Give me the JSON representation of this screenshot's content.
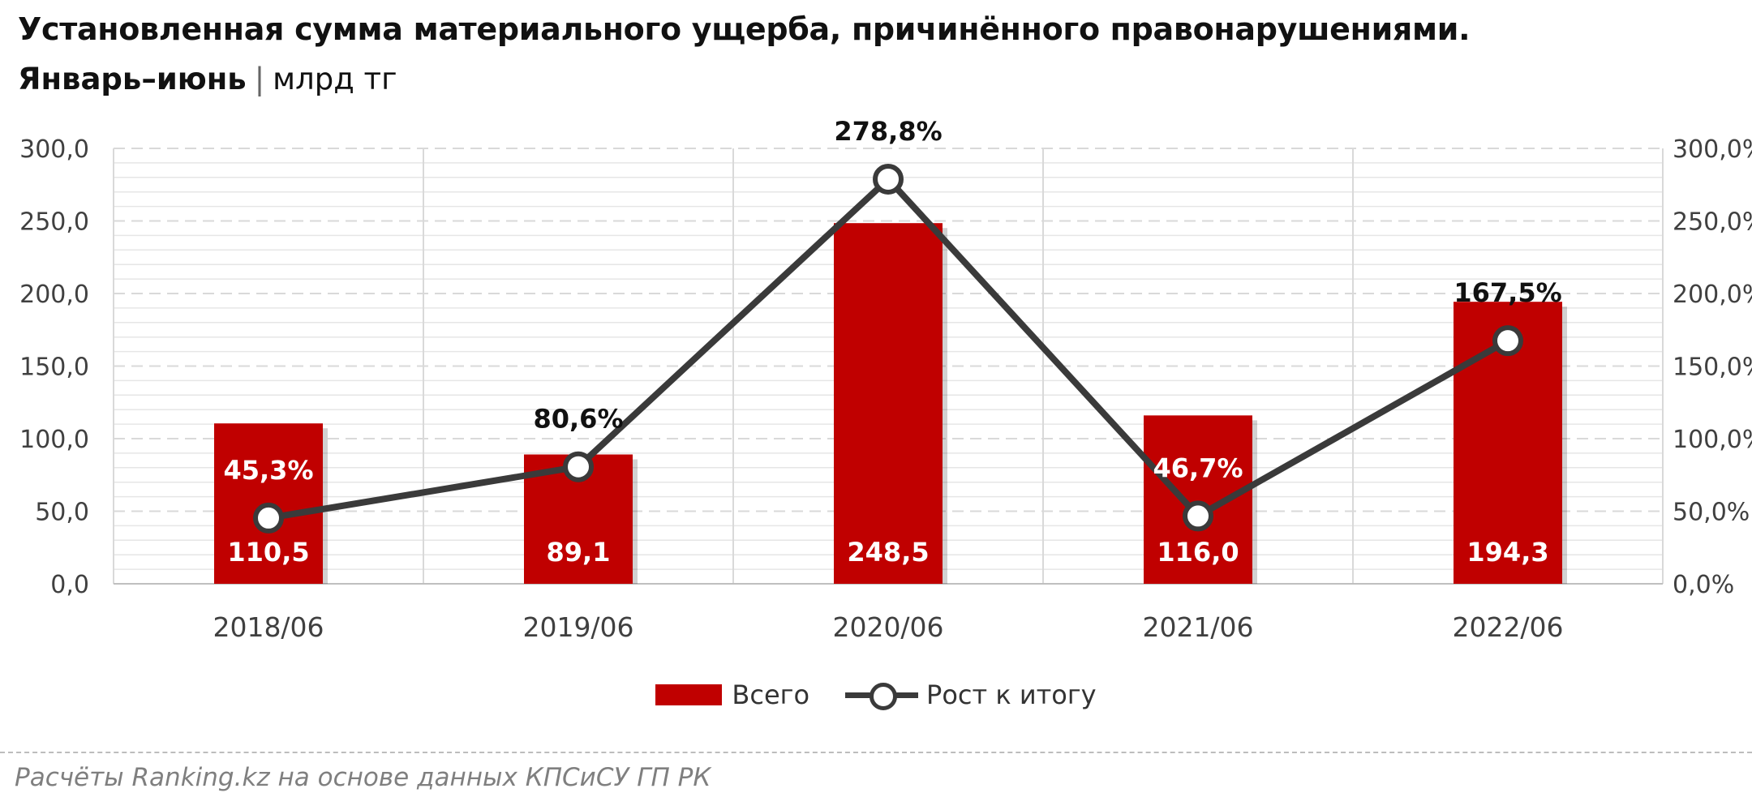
{
  "header": {
    "title": "Установленная сумма материального ущерба, причинённого правонарушениями.",
    "subtitle_period": "Январь–июнь",
    "subtitle_separator": "|",
    "subtitle_unit": "млрд тг"
  },
  "colors": {
    "bar": "#c00000",
    "line": "#3a3a3a",
    "marker_fill": "#ffffff",
    "grid": "#d9d9d9",
    "axis_text": "#404040"
  },
  "chart_data": {
    "type": "bar",
    "categories": [
      "2018/06",
      "2019/06",
      "2020/06",
      "2021/06",
      "2022/06"
    ],
    "series": [
      {
        "name": "Всего",
        "type": "bar",
        "axis": "left",
        "values": [
          110.5,
          89.1,
          248.5,
          116.0,
          194.3
        ],
        "labels": [
          "110,5",
          "89,1",
          "248,5",
          "116,0",
          "194,3"
        ]
      },
      {
        "name": "Рост к итогу",
        "type": "line",
        "axis": "right",
        "values": [
          45.3,
          80.6,
          278.8,
          46.7,
          167.5
        ],
        "labels": [
          "45,3%",
          "80,6%",
          "278,8%",
          "46,7%",
          "167,5%"
        ]
      }
    ],
    "y_left": {
      "min": 0,
      "max": 300,
      "ticks": [
        0,
        50,
        100,
        150,
        200,
        250,
        300
      ],
      "tick_labels": [
        "0,0",
        "50,0",
        "100,0",
        "150,0",
        "200,0",
        "250,0",
        "300,0"
      ]
    },
    "y_right": {
      "min": 0,
      "max": 300,
      "ticks": [
        0,
        50,
        100,
        150,
        200,
        250,
        300
      ],
      "tick_labels": [
        "0,0%",
        "50,0%",
        "100,0%",
        "150,0%",
        "200,0%",
        "250,0%",
        "300,0%"
      ]
    },
    "grid": true,
    "legend": "bottom"
  },
  "legend": {
    "bar_label": "Всего",
    "line_label": "Рост к итогу"
  },
  "footer": {
    "source": "Расчёты Ranking.kz на основе данных КПСиСУ ГП РК"
  }
}
